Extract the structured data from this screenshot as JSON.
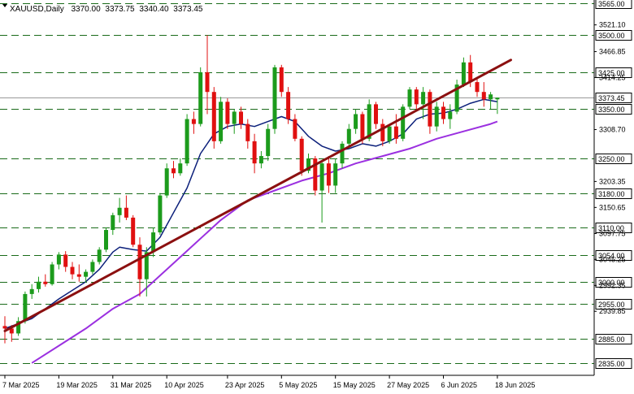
{
  "chart_data": {
    "type": "candlestick",
    "symbol": "XAUUSD",
    "timeframe": "Daily",
    "ohlc_header": [
      "3370.00",
      "3373.75",
      "3340.40",
      "3373.45"
    ],
    "current_price": 3373.45,
    "ylim": [
      2810,
      3565
    ],
    "y_ticks": [
      {
        "value": 3521.1,
        "label": "3521.10"
      },
      {
        "value": 3466.85,
        "label": "3466.85"
      },
      {
        "value": 3414.25,
        "label": "3414.25"
      },
      {
        "value": 3308.7,
        "label": "3308.70"
      },
      {
        "value": 3203.35,
        "label": "3203.35"
      },
      {
        "value": 3150.65,
        "label": "3150.65"
      },
      {
        "value": 3097.75,
        "label": "3097.75"
      },
      {
        "value": 3045.25,
        "label": "3045.25"
      },
      {
        "value": 2992.35,
        "label": "2992.35"
      },
      {
        "value": 2939.85,
        "label": "2939.85"
      }
    ],
    "levels": [
      {
        "value": 3565,
        "label": "3565.00"
      },
      {
        "value": 3500,
        "label": "3500.00"
      },
      {
        "value": 3425,
        "label": "3425.00"
      },
      {
        "value": 3350,
        "label": "3350.00"
      },
      {
        "value": 3250,
        "label": "3250.00"
      },
      {
        "value": 3180,
        "label": "3180.00"
      },
      {
        "value": 3110,
        "label": "3110.00"
      },
      {
        "value": 3054,
        "label": "3054.00"
      },
      {
        "value": 3000,
        "label": "3000.00"
      },
      {
        "value": 2955,
        "label": "2955.00"
      },
      {
        "value": 2885,
        "label": "2885.00"
      },
      {
        "value": 2835,
        "label": "2835.00"
      }
    ],
    "x_ticks": [
      {
        "index": 0,
        "label": "7 Mar 2025"
      },
      {
        "index": 8,
        "label": "19 Mar 2025"
      },
      {
        "index": 16,
        "label": "31 Mar 2025"
      },
      {
        "index": 24,
        "label": "10 Apr 2025"
      },
      {
        "index": 33,
        "label": "23 Apr 2025"
      },
      {
        "index": 41,
        "label": "5 May 2025"
      },
      {
        "index": 49,
        "label": "15 May 2025"
      },
      {
        "index": 57,
        "label": "27 May 2025"
      },
      {
        "index": 65,
        "label": "6 Jun 2025"
      },
      {
        "index": 73,
        "label": "18 Jun 2025"
      }
    ],
    "candles": [
      [
        2910,
        2930,
        2875,
        2905
      ],
      [
        2905,
        2912,
        2878,
        2895
      ],
      [
        2895,
        2928,
        2890,
        2920
      ],
      [
        2920,
        2980,
        2915,
        2975
      ],
      [
        2975,
        2995,
        2965,
        2985
      ],
      [
        2985,
        3010,
        2978,
        3000
      ],
      [
        3000,
        3015,
        2990,
        2995
      ],
      [
        2995,
        3040,
        2992,
        3035
      ],
      [
        3035,
        3060,
        3025,
        3055
      ],
      [
        3055,
        3062,
        3020,
        3030
      ],
      [
        3030,
        3040,
        3005,
        3015
      ],
      [
        3015,
        3035,
        3000,
        3010
      ],
      [
        3010,
        3025,
        2998,
        3020
      ],
      [
        3020,
        3045,
        3015,
        3040
      ],
      [
        3040,
        3070,
        3035,
        3065
      ],
      [
        3065,
        3110,
        3060,
        3105
      ],
      [
        3105,
        3140,
        3095,
        3135
      ],
      [
        3135,
        3170,
        3120,
        3150
      ],
      [
        3150,
        3175,
        3125,
        3130
      ],
      [
        3130,
        3135,
        3070,
        3075
      ],
      [
        3075,
        3090,
        2970,
        3005
      ],
      [
        3005,
        3070,
        2970,
        3060
      ],
      [
        3060,
        3110,
        3050,
        3100
      ],
      [
        3100,
        3180,
        3095,
        3175
      ],
      [
        3175,
        3240,
        3170,
        3230
      ],
      [
        3230,
        3245,
        3210,
        3220
      ],
      [
        3220,
        3250,
        3215,
        3240
      ],
      [
        3240,
        3340,
        3235,
        3330
      ],
      [
        3330,
        3345,
        3300,
        3320
      ],
      [
        3320,
        3435,
        3315,
        3425
      ],
      [
        3425,
        3500,
        3340,
        3385
      ],
      [
        3385,
        3395,
        3270,
        3285
      ],
      [
        3285,
        3375,
        3280,
        3365
      ],
      [
        3365,
        3372,
        3310,
        3320
      ],
      [
        3320,
        3350,
        3300,
        3345
      ],
      [
        3345,
        3355,
        3310,
        3320
      ],
      [
        3320,
        3330,
        3270,
        3285
      ],
      [
        3285,
        3300,
        3220,
        3240
      ],
      [
        3240,
        3265,
        3230,
        3255
      ],
      [
        3255,
        3320,
        3245,
        3310
      ],
      [
        3310,
        3440,
        3300,
        3435
      ],
      [
        3435,
        3440,
        3375,
        3385
      ],
      [
        3385,
        3395,
        3320,
        3330
      ],
      [
        3330,
        3340,
        3285,
        3290
      ],
      [
        3290,
        3295,
        3215,
        3225
      ],
      [
        3225,
        3260,
        3220,
        3250
      ],
      [
        3250,
        3255,
        3175,
        3185
      ],
      [
        3185,
        3245,
        3120,
        3240
      ],
      [
        3240,
        3255,
        3180,
        3195
      ],
      [
        3195,
        3250,
        3180,
        3240
      ],
      [
        3240,
        3285,
        3230,
        3280
      ],
      [
        3280,
        3320,
        3270,
        3310
      ],
      [
        3310,
        3350,
        3300,
        3340
      ],
      [
        3340,
        3345,
        3280,
        3290
      ],
      [
        3290,
        3370,
        3285,
        3360
      ],
      [
        3360,
        3365,
        3310,
        3320
      ],
      [
        3320,
        3330,
        3275,
        3285
      ],
      [
        3285,
        3320,
        3280,
        3315
      ],
      [
        3315,
        3340,
        3280,
        3290
      ],
      [
        3290,
        3360,
        3285,
        3355
      ],
      [
        3355,
        3395,
        3350,
        3390
      ],
      [
        3390,
        3395,
        3350,
        3360
      ],
      [
        3360,
        3395,
        3330,
        3385
      ],
      [
        3385,
        3390,
        3300,
        3315
      ],
      [
        3315,
        3365,
        3305,
        3355
      ],
      [
        3355,
        3365,
        3320,
        3330
      ],
      [
        3330,
        3360,
        3310,
        3345
      ],
      [
        3345,
        3410,
        3340,
        3400
      ],
      [
        3400,
        3455,
        3395,
        3445
      ],
      [
        3445,
        3460,
        3395,
        3405
      ],
      [
        3405,
        3415,
        3375,
        3385
      ],
      [
        3385,
        3405,
        3355,
        3370
      ],
      [
        3370,
        3385,
        3350,
        3380
      ],
      [
        3370,
        3373.75,
        3340.4,
        3373.45
      ]
    ],
    "ma_fast": [
      [
        0,
        2905
      ],
      [
        4,
        2925
      ],
      [
        8,
        2965
      ],
      [
        12,
        3000
      ],
      [
        14,
        3025
      ],
      [
        16,
        3060
      ],
      [
        17,
        3070
      ],
      [
        19,
        3065
      ],
      [
        21,
        3062
      ],
      [
        23,
        3090
      ],
      [
        25,
        3140
      ],
      [
        27,
        3190
      ],
      [
        29,
        3260
      ],
      [
        31,
        3300
      ],
      [
        33,
        3315
      ],
      [
        35,
        3320
      ],
      [
        37,
        3315
      ],
      [
        39,
        3325
      ],
      [
        41,
        3335
      ],
      [
        43,
        3325
      ],
      [
        45,
        3295
      ],
      [
        47,
        3275
      ],
      [
        49,
        3265
      ],
      [
        51,
        3270
      ],
      [
        53,
        3280
      ],
      [
        55,
        3275
      ],
      [
        57,
        3285
      ],
      [
        59,
        3300
      ],
      [
        61,
        3330
      ],
      [
        63,
        3340
      ],
      [
        65,
        3342
      ],
      [
        67,
        3350
      ],
      [
        69,
        3362
      ],
      [
        71,
        3370
      ],
      [
        73,
        3365
      ]
    ],
    "ma_slow": [
      [
        4,
        2835
      ],
      [
        8,
        2870
      ],
      [
        12,
        2905
      ],
      [
        16,
        2945
      ],
      [
        20,
        2975
      ],
      [
        24,
        3025
      ],
      [
        28,
        3075
      ],
      [
        32,
        3125
      ],
      [
        36,
        3165
      ],
      [
        40,
        3185
      ],
      [
        44,
        3205
      ],
      [
        48,
        3220
      ],
      [
        52,
        3240
      ],
      [
        56,
        3255
      ],
      [
        60,
        3270
      ],
      [
        64,
        3290
      ],
      [
        68,
        3305
      ],
      [
        72,
        3320
      ],
      [
        73,
        3325
      ]
    ],
    "trendline": [
      [
        0,
        2900
      ],
      [
        75,
        3450
      ]
    ]
  }
}
